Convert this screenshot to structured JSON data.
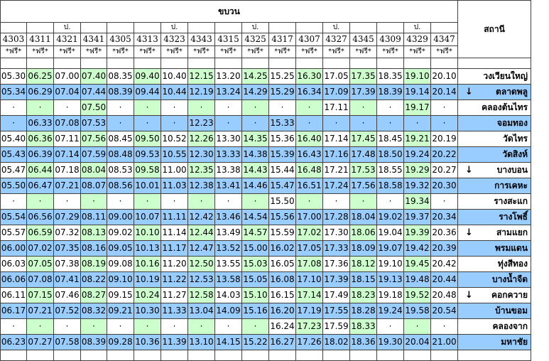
{
  "header": {
    "direction_title": "ขบวน",
    "station_title": "สถานี"
  },
  "trains": [
    {
      "no": "4303",
      "mark": "",
      "free": "*ฟรี*"
    },
    {
      "no": "4311",
      "mark": "",
      "free": "*ฟรี*"
    },
    {
      "no": "4321",
      "mark": "ป.",
      "free": "*ฟรี*"
    },
    {
      "no": "4341",
      "mark": "",
      "free": "*ฟรี*"
    },
    {
      "no": "4305",
      "mark": "",
      "free": "*ฟรี*"
    },
    {
      "no": "4313",
      "mark": "",
      "free": "*ฟรี*"
    },
    {
      "no": "4323",
      "mark": "ป.",
      "free": "*ฟรี*"
    },
    {
      "no": "4343",
      "mark": "",
      "free": "*ฟรี*"
    },
    {
      "no": "4315",
      "mark": "",
      "free": "*ฟรี*"
    },
    {
      "no": "4325",
      "mark": "ป.",
      "free": "*ฟรี*"
    },
    {
      "no": "4317",
      "mark": "",
      "free": "*ฟรี*"
    },
    {
      "no": "4307",
      "mark": "",
      "free": "*ฟรี*"
    },
    {
      "no": "4327",
      "mark": "ป.",
      "free": "*ฟรี*"
    },
    {
      "no": "4345",
      "mark": "",
      "free": "*ฟรี*"
    },
    {
      "no": "4309",
      "mark": "",
      "free": "*ฟรี*"
    },
    {
      "no": "4329",
      "mark": "ป.",
      "free": "*ฟรี*"
    },
    {
      "no": "4347",
      "mark": "",
      "free": "*ฟรี*"
    }
  ],
  "rows": [
    {
      "station": "วงเวียนใหญ่",
      "arrow": "",
      "times": [
        "05.30",
        "06.25",
        "07.00",
        "07.40",
        "08.35",
        "09.40",
        "10.40",
        "12.15",
        "13.20",
        "14.25",
        "15.25",
        "16.30",
        "17.05",
        "17.35",
        "18.35",
        "19.10",
        "20.10"
      ]
    },
    {
      "station": "ตลาดพลู",
      "arrow": "↓",
      "times": [
        "05.34",
        "06.29",
        "07.04",
        "07.44",
        "08.39",
        "09.44",
        "10.44",
        "12.19",
        "13.24",
        "14.29",
        "15.29",
        "16.34",
        "17.09",
        "17.39",
        "18.39",
        "19.14",
        "20.14"
      ]
    },
    {
      "station": "คลองต้นไทร",
      "arrow": "",
      "times": [
        "·",
        "·",
        "·",
        "07.50",
        "·",
        "·",
        "·",
        "·",
        "·",
        "·",
        "·",
        "·",
        "17.11",
        "·",
        "·",
        "19.17",
        "·"
      ]
    },
    {
      "station": "จอมทอง",
      "arrow": "",
      "times": [
        "·",
        "06.33",
        "07.08",
        "07.53",
        "·",
        "·",
        "·",
        "12.23",
        "·",
        "·",
        "15.33",
        "·",
        "·",
        "·",
        "·",
        "·",
        "·"
      ]
    },
    {
      "station": "วัดไทร",
      "arrow": "",
      "times": [
        "05.40",
        "06.36",
        "07.11",
        "07.56",
        "08.45",
        "09.50",
        "10.52",
        "12.26",
        "13.30",
        "14.35",
        "15.36",
        "16.40",
        "17.14",
        "17.45",
        "18.45",
        "19.21",
        "20.19"
      ]
    },
    {
      "station": "วัดสิงห์",
      "arrow": "",
      "times": [
        "05.43",
        "06.39",
        "07.14",
        "07.59",
        "08.48",
        "09.53",
        "10.55",
        "12.30",
        "13.33",
        "14.38",
        "15.39",
        "16.43",
        "17.16",
        "17.48",
        "18.50",
        "19.24",
        "20.22"
      ]
    },
    {
      "station": "บางบอน",
      "arrow": "↓",
      "times": [
        "05.47",
        "06.44",
        "07.18",
        "08.04",
        "08.53",
        "09.58",
        "11.00",
        "12.35",
        "13.38",
        "14.43",
        "15.44",
        "16.48",
        "17.21",
        "17.53",
        "18.55",
        "19.29",
        "20.27"
      ]
    },
    {
      "station": "การเคหะ",
      "arrow": "",
      "times": [
        "05.50",
        "06.47",
        "07.21",
        "08.07",
        "08.56",
        "10.01",
        "11.03",
        "12.38",
        "13.41",
        "14.46",
        "15.47",
        "16.51",
        "17.24",
        "17.56",
        "18.58",
        "19.32",
        "20.30"
      ]
    },
    {
      "station": "รางสะแก",
      "arrow": "",
      "times": [
        "·",
        "·",
        "·",
        "·",
        "·",
        "·",
        "·",
        "·",
        "·",
        "·",
        "15.50",
        "·",
        "·",
        "·",
        "·",
        "19.34",
        "·"
      ]
    },
    {
      "station": "รางโพธิ์",
      "arrow": "",
      "times": [
        "05.54",
        "06.56",
        "07.29",
        "08.11",
        "09.00",
        "10.07",
        "11.11",
        "12.42",
        "13.46",
        "14.54",
        "15.56",
        "17.00",
        "17.28",
        "18.04",
        "19.02",
        "19.37",
        "20.34"
      ]
    },
    {
      "station": "สามแยก",
      "arrow": "↓",
      "times": [
        "05.57",
        "06.59",
        "07.32",
        "08.13",
        "09.02",
        "10.10",
        "11.14",
        "12.44",
        "13.49",
        "14.57",
        "15.59",
        "17.02",
        "17.30",
        "18.06",
        "19.04",
        "19.39",
        "20.36"
      ]
    },
    {
      "station": "พรมแดน",
      "arrow": "",
      "times": [
        "06.00",
        "07.02",
        "07.35",
        "08.16",
        "09.05",
        "10.13",
        "11.17",
        "12.47",
        "13.52",
        "15.00",
        "16.02",
        "17.05",
        "17.33",
        "18.09",
        "19.07",
        "19.42",
        "20.39"
      ]
    },
    {
      "station": "ทุ่งสีทอง",
      "arrow": "",
      "times": [
        "06.03",
        "07.05",
        "07.38",
        "08.19",
        "09.08",
        "10.16",
        "11.20",
        "12.50",
        "13.55",
        "15.03",
        "16.05",
        "17.08",
        "17.36",
        "18.12",
        "19.10",
        "19.45",
        "20.42"
      ]
    },
    {
      "station": "บางน้ำจืด",
      "arrow": "",
      "times": [
        "06.06",
        "07.08",
        "07.41",
        "08.22",
        "09.10",
        "10.19",
        "11.22",
        "12.53",
        "13.58",
        "15.05",
        "16.08",
        "17.10",
        "17.39",
        "18.15",
        "19.13",
        "19.48",
        "20.44"
      ]
    },
    {
      "station": "คอกควาย",
      "arrow": "↓",
      "times": [
        "06.11",
        "07.15",
        "07.46",
        "08.27",
        "09.15",
        "10.24",
        "11.27",
        "12.58",
        "14.03",
        "15.10",
        "16.15",
        "17.14",
        "17.49",
        "18.23",
        "19.18",
        "19.52",
        "20.48"
      ]
    },
    {
      "station": "บ้านขอม",
      "arrow": "",
      "times": [
        "06.17",
        "07.21",
        "07.52",
        "08.32",
        "09.21",
        "10.30",
        "11.33",
        "13.04",
        "14.09",
        "15.16",
        "16.20",
        "17.19",
        "17.55",
        "18.28",
        "19.24",
        "19.58",
        "20.54"
      ]
    },
    {
      "station": "คลองจาก",
      "arrow": "",
      "times": [
        "·",
        "·",
        "·",
        "·",
        "·",
        "·",
        "·",
        "·",
        "·",
        "·",
        "16.24",
        "17.23",
        "17.59",
        "18.33",
        "·",
        "·",
        "·"
      ]
    },
    {
      "station": "มหาชัย",
      "arrow": "",
      "times": [
        "06.23",
        "07.27",
        "07.58",
        "08.39",
        "09.28",
        "10.36",
        "11.39",
        "13.10",
        "14.15",
        "15.22",
        "16.27",
        "17.26",
        "18.02",
        "18.36",
        "19.30",
        "20.04",
        "21.00"
      ]
    }
  ],
  "colors": {
    "white": "#ffffff",
    "green": "#ccffcc",
    "blue": "#99ccff",
    "border": "#404040"
  }
}
